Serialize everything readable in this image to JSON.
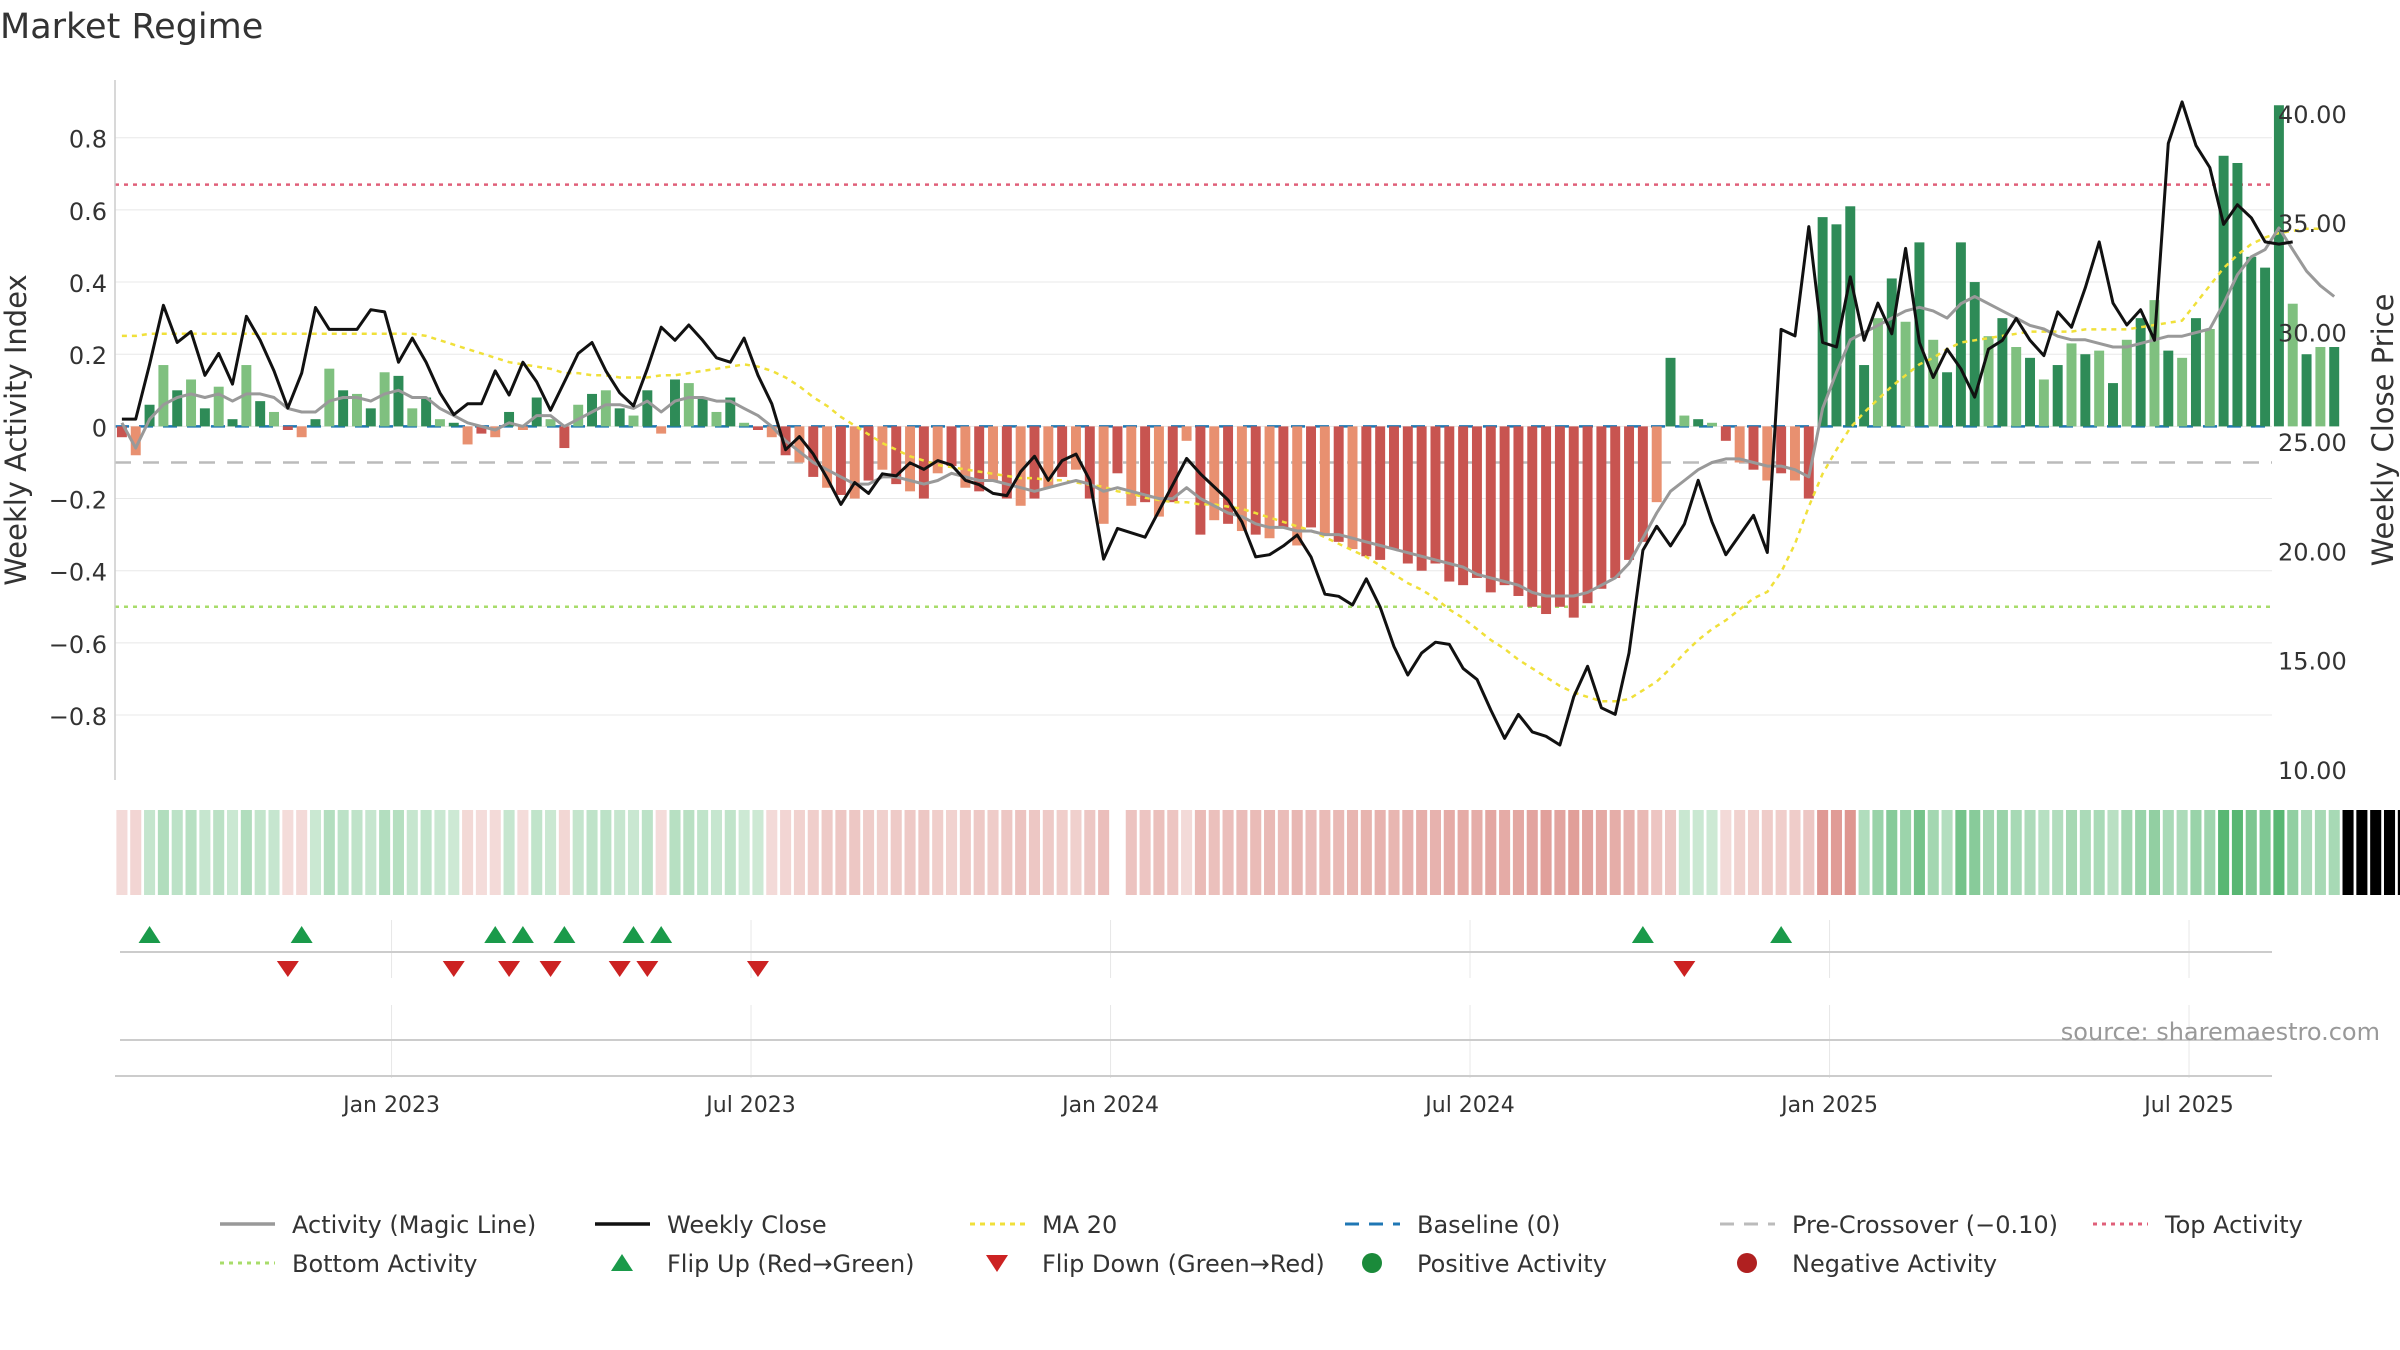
{
  "title": "Market Regime",
  "source": "source: sharemaestro.com",
  "colors": {
    "pos_strong": "#2e8b57",
    "pos_light": "#7fc07f",
    "neg_strong": "#c85450",
    "neg_light": "#e89070",
    "magic_line": "#999999",
    "close_line": "#111111",
    "ma20": "#f0e03a",
    "baseline": "#1f77b4",
    "pre_crossover": "#bbbbbb",
    "top_activity": "#e0607a",
    "bottom_activity": "#a8dc6a",
    "flip_up": "#1a9a4a",
    "flip_down": "#cc2222",
    "positive_dot": "#1a8a3a",
    "negative_dot": "#b02020"
  },
  "chart_data": {
    "type": "bar",
    "title": "Market Regime",
    "ylabel_left": "Weekly Activity Index",
    "ylabel_right": "Weekly Close Price",
    "y_left_range": [
      -0.98,
      0.96
    ],
    "y_right_range": [
      9.5,
      41.5
    ],
    "y_left_ticks": [
      "0.8",
      "0.6",
      "0.4",
      "0.2",
      "0",
      "−0.2",
      "−0.4",
      "−0.6",
      "−0.8"
    ],
    "y_left_tick_values": [
      0.8,
      0.6,
      0.4,
      0.2,
      0,
      -0.2,
      -0.4,
      -0.6,
      -0.8
    ],
    "y_right_ticks": [
      "40.00",
      "35.00",
      "30.00",
      "25.00",
      "20.00",
      "15.00",
      "10.00"
    ],
    "y_right_tick_values": [
      40,
      35,
      30,
      25,
      20,
      15,
      10
    ],
    "x_ticks": [
      "Jan 2023",
      "Jul 2023",
      "Jan 2024",
      "Jul 2024",
      "Jan 2025",
      "Jul 2025"
    ],
    "x_tick_weeks": [
      20,
      46,
      72,
      98,
      124,
      150
    ],
    "weeks": 156,
    "activity": [
      -0.03,
      -0.08,
      0.06,
      0.17,
      0.1,
      0.13,
      0.05,
      0.11,
      0.02,
      0.17,
      0.07,
      0.04,
      -0.01,
      -0.03,
      0.02,
      0.16,
      0.1,
      0.09,
      0.05,
      0.15,
      0.14,
      0.05,
      0.08,
      0.02,
      0.01,
      -0.05,
      -0.02,
      -0.03,
      0.04,
      -0.01,
      0.08,
      0.02,
      -0.06,
      0.06,
      0.09,
      0.1,
      0.05,
      0.03,
      0.1,
      -0.02,
      0.13,
      0.12,
      0.08,
      0.04,
      0.08,
      0.01,
      -0.01,
      -0.03,
      -0.08,
      -0.1,
      -0.14,
      -0.17,
      -0.19,
      -0.2,
      -0.15,
      -0.12,
      -0.16,
      -0.18,
      -0.2,
      -0.13,
      -0.11,
      -0.17,
      -0.18,
      -0.15,
      -0.2,
      -0.22,
      -0.2,
      -0.17,
      -0.14,
      -0.12,
      -0.2,
      -0.27,
      -0.13,
      -0.22,
      -0.21,
      -0.25,
      -0.21,
      -0.04,
      -0.3,
      -0.26,
      -0.27,
      -0.29,
      -0.3,
      -0.31,
      -0.28,
      -0.33,
      -0.28,
      -0.3,
      -0.32,
      -0.34,
      -0.36,
      -0.37,
      -0.34,
      -0.38,
      -0.4,
      -0.38,
      -0.43,
      -0.44,
      -0.42,
      -0.46,
      -0.44,
      -0.47,
      -0.5,
      -0.52,
      -0.5,
      -0.53,
      -0.49,
      -0.45,
      -0.42,
      -0.37,
      -0.32,
      -0.21,
      0.19,
      0.03,
      0.02,
      0.01,
      -0.04,
      -0.1,
      -0.12,
      -0.15,
      -0.13,
      -0.15,
      -0.2,
      0.58,
      0.56,
      0.61,
      0.17,
      0.3,
      0.41,
      0.29,
      0.51,
      0.24,
      0.15,
      0.51,
      0.4,
      0.25,
      0.3,
      0.22,
      0.19,
      0.13,
      0.17,
      0.23,
      0.2,
      0.21,
      0.12,
      0.24,
      0.3,
      0.35,
      0.21,
      0.19,
      0.3,
      0.27,
      0.75,
      0.73,
      0.47,
      0.44,
      0.89,
      0.34,
      0.2,
      0.22,
      0.22
    ],
    "weekly_close": [
      26,
      26,
      28.5,
      31.2,
      29.5,
      30,
      28,
      29,
      27.6,
      30.7,
      29.6,
      28.2,
      26.5,
      28.1,
      31.1,
      30.1,
      30.1,
      30.1,
      31,
      30.9,
      28.6,
      29.7,
      28.6,
      27.2,
      26.2,
      26.7,
      26.7,
      28.2,
      27.1,
      28.6,
      27.7,
      26.4,
      27.7,
      29,
      29.5,
      28.2,
      27.2,
      26.6,
      28.3,
      30.2,
      29.6,
      30.3,
      29.6,
      28.8,
      28.6,
      29.7,
      28,
      26.7,
      24.6,
      25.2,
      24.4,
      23.3,
      22.1,
      23.1,
      22.6,
      23.5,
      23.4,
      24,
      23.7,
      24.1,
      23.9,
      23.2,
      23,
      22.6,
      22.5,
      23.6,
      24.3,
      23.2,
      24.1,
      24.4,
      23.2,
      19.6,
      21,
      20.8,
      20.6,
      21.8,
      23,
      24.2,
      23.5,
      22.9,
      22.3,
      21.3,
      19.7,
      19.8,
      20.2,
      20.7,
      19.7,
      18,
      17.9,
      17.5,
      18.7,
      17.4,
      15.6,
      14.3,
      15.3,
      15.8,
      15.7,
      14.6,
      14.1,
      12.7,
      11.4,
      12.5,
      11.7,
      11.5,
      11.1,
      13.3,
      14.7,
      12.8,
      12.5,
      15.3,
      20,
      21.1,
      20.2,
      21.2,
      23.2,
      21.3,
      19.8,
      20.7,
      21.6,
      19.9,
      30.1,
      29.8,
      34.8,
      29.5,
      29.3,
      32.5,
      29.6,
      31.3,
      29.9,
      33.8,
      29.5,
      27.9,
      29.2,
      28.3,
      27,
      29.2,
      29.6,
      30.6,
      29.6,
      28.9,
      30.9,
      30.2,
      32,
      34.1,
      31.3,
      30.3,
      31,
      29.6,
      38.6,
      40.5,
      38.5,
      37.5,
      34.9,
      35.8,
      35.2,
      34.1,
      34,
      34.1
    ],
    "magic_line": [
      0.01,
      -0.06,
      0.02,
      0.06,
      0.08,
      0.09,
      0.08,
      0.09,
      0.07,
      0.09,
      0.09,
      0.08,
      0.05,
      0.04,
      0.04,
      0.07,
      0.08,
      0.08,
      0.07,
      0.09,
      0.1,
      0.08,
      0.08,
      0.05,
      0.03,
      0.01,
      0,
      -0.01,
      0.01,
      0,
      0.03,
      0.03,
      0,
      0.02,
      0.04,
      0.06,
      0.06,
      0.05,
      0.07,
      0.04,
      0.07,
      0.08,
      0.08,
      0.07,
      0.07,
      0.05,
      0.03,
      0,
      -0.04,
      -0.07,
      -0.1,
      -0.12,
      -0.14,
      -0.16,
      -0.16,
      -0.14,
      -0.14,
      -0.15,
      -0.16,
      -0.15,
      -0.13,
      -0.14,
      -0.15,
      -0.15,
      -0.16,
      -0.17,
      -0.18,
      -0.17,
      -0.16,
      -0.15,
      -0.16,
      -0.18,
      -0.17,
      -0.18,
      -0.19,
      -0.2,
      -0.2,
      -0.17,
      -0.2,
      -0.22,
      -0.24,
      -0.25,
      -0.27,
      -0.28,
      -0.28,
      -0.29,
      -0.29,
      -0.3,
      -0.3,
      -0.31,
      -0.32,
      -0.33,
      -0.34,
      -0.35,
      -0.36,
      -0.37,
      -0.38,
      -0.39,
      -0.41,
      -0.42,
      -0.43,
      -0.44,
      -0.46,
      -0.47,
      -0.47,
      -0.47,
      -0.46,
      -0.44,
      -0.42,
      -0.38,
      -0.31,
      -0.24,
      -0.18,
      -0.15,
      -0.12,
      -0.1,
      -0.09,
      -0.09,
      -0.1,
      -0.11,
      -0.11,
      -0.12,
      -0.14,
      0.05,
      0.15,
      0.24,
      0.26,
      0.28,
      0.3,
      0.32,
      0.33,
      0.32,
      0.3,
      0.34,
      0.36,
      0.34,
      0.32,
      0.3,
      0.28,
      0.27,
      0.25,
      0.24,
      0.24,
      0.23,
      0.22,
      0.22,
      0.23,
      0.24,
      0.25,
      0.25,
      0.26,
      0.27,
      0.34,
      0.42,
      0.47,
      0.49,
      0.55,
      0.49,
      0.43,
      0.39,
      0.36
    ],
    "ma20": [
      29.8,
      29.8,
      29.9,
      29.9,
      29.9,
      29.9,
      29.9,
      29.9,
      29.9,
      29.9,
      29.9,
      29.9,
      29.9,
      29.9,
      29.9,
      29.9,
      29.9,
      29.9,
      29.9,
      29.9,
      29.9,
      29.9,
      29.8,
      29.6,
      29.4,
      29.2,
      29,
      28.8,
      28.6,
      28.5,
      28.4,
      28.3,
      28.1,
      28.1,
      28,
      28,
      27.9,
      27.9,
      27.9,
      28,
      28,
      28.1,
      28.2,
      28.3,
      28.4,
      28.5,
      28.4,
      28.2,
      27.9,
      27.5,
      27,
      26.6,
      26.1,
      25.7,
      25.3,
      24.9,
      24.6,
      24.3,
      24.1,
      23.9,
      23.8,
      23.7,
      23.6,
      23.5,
      23.4,
      23.3,
      23.3,
      23.2,
      23.2,
      23.1,
      23,
      22.9,
      22.7,
      22.6,
      22.4,
      22.3,
      22.2,
      22.2,
      22.1,
      22.1,
      22,
      21.9,
      21.7,
      21.5,
      21.3,
      21.1,
      20.9,
      20.6,
      20.3,
      20,
      19.7,
      19.3,
      18.9,
      18.5,
      18.2,
      17.8,
      17.3,
      16.9,
      16.4,
      15.9,
      15.5,
      15,
      14.6,
      14.2,
      13.8,
      13.5,
      13.3,
      13.1,
      13.1,
      13.2,
      13.6,
      14,
      14.6,
      15.3,
      15.9,
      16.4,
      16.8,
      17.3,
      17.8,
      18.1,
      19,
      20.3,
      22,
      23.5,
      24.6,
      25.6,
      26.3,
      26.9,
      27.5,
      28,
      28.5,
      28.8,
      29.2,
      29.5,
      29.6,
      29.7,
      29.8,
      29.9,
      30,
      30,
      30,
      30,
      30.1,
      30.1,
      30.1,
      30.1,
      30.2,
      30.3,
      30.4,
      30.5,
      31.3,
      32.1,
      32.9,
      33.5,
      34,
      34.3,
      34.5,
      34.6,
      34.7,
      34.7
    ],
    "regime_strip": [
      -1,
      -1,
      1,
      1,
      1,
      1,
      1,
      1,
      1,
      1,
      1,
      1,
      -1,
      -1,
      1,
      1,
      1,
      1,
      1,
      1,
      1,
      1,
      1,
      1,
      1,
      -1,
      -1,
      -1,
      1,
      -1,
      1,
      1,
      -1,
      1,
      1,
      1,
      1,
      1,
      1,
      -1,
      1,
      1,
      1,
      1,
      1,
      1,
      1,
      -1,
      -1,
      -1,
      -1,
      -1,
      -1,
      -1,
      -1,
      -1,
      -1,
      -1,
      -1,
      -1,
      -1,
      -1,
      -1,
      -1,
      -1,
      -1,
      -1,
      -1,
      -1,
      -1,
      -1,
      -1,
      0,
      -1,
      -1,
      -1,
      -1,
      -1,
      -1,
      -1,
      -1,
      -1,
      -1,
      -1,
      -1,
      -1,
      -1,
      -1,
      -1,
      -1,
      -1,
      -1,
      -1,
      -1,
      -1,
      -1,
      -1,
      -1,
      -1,
      -1,
      -1,
      -1,
      -1,
      -1,
      -1,
      -1,
      -1,
      -1,
      -1,
      -1,
      -1,
      -1,
      -1,
      1,
      1,
      1,
      -1,
      -1,
      -1,
      -1,
      -1,
      -1,
      -1,
      -1,
      -1,
      -1,
      1,
      1,
      1,
      1,
      1,
      1,
      1,
      1,
      1,
      1,
      1,
      1,
      1,
      1,
      1,
      1,
      1,
      1,
      1,
      1,
      1,
      1,
      1,
      1,
      1,
      1,
      1,
      1,
      1,
      1,
      1,
      1,
      1,
      1,
      1,
      1,
      1,
      1,
      1,
      1
    ],
    "flip_up_weeks": [
      2,
      13,
      27,
      29,
      32,
      37,
      39,
      110,
      120
    ],
    "flip_down_weeks": [
      12,
      24,
      28,
      31,
      36,
      38,
      46,
      113
    ],
    "reference_lines": {
      "baseline": 0,
      "pre_crossover": -0.1,
      "top_activity": 0.67,
      "bottom_activity": -0.5
    },
    "legend": [
      {
        "label": "Activity (Magic Line)",
        "style": "magic"
      },
      {
        "label": "Weekly Close",
        "style": "close"
      },
      {
        "label": "MA 20",
        "style": "ma"
      },
      {
        "label": "Baseline (0)",
        "style": "baseline"
      },
      {
        "label": "Pre-Crossover (−0.10)",
        "style": "pre"
      },
      {
        "label": "Top Activity",
        "style": "top"
      },
      {
        "label": "Bottom Activity",
        "style": "bottom"
      },
      {
        "label": "Flip Up (Red→Green)",
        "style": "flipup"
      },
      {
        "label": "Flip Down (Green→Red)",
        "style": "flipdown"
      },
      {
        "label": "Positive Activity",
        "style": "posdot"
      },
      {
        "label": "Negative Activity",
        "style": "negdot"
      }
    ],
    "legend_placement": "bottom",
    "grid": true
  }
}
